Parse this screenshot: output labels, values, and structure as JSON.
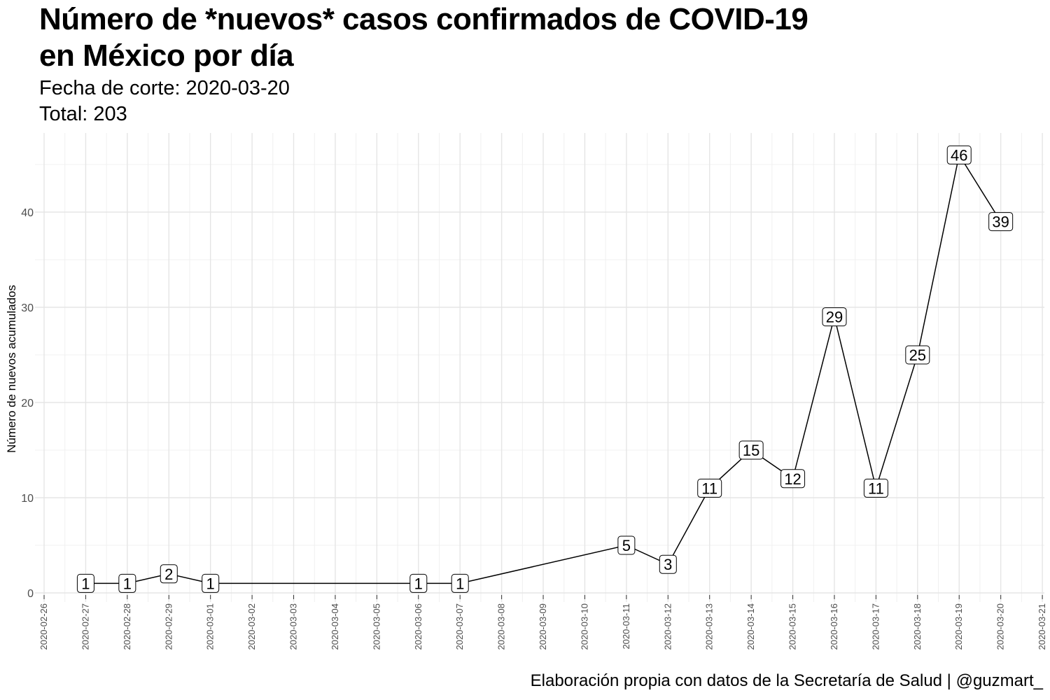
{
  "chart_data": {
    "type": "line",
    "title_line1": "Número de *nuevos* casos confirmados de COVID-19",
    "title_line2": "en México por día",
    "subtitle_line1": "Fecha de corte: 2020-03-20",
    "subtitle_line2": "Total: 203",
    "caption": "Elaboración propia con datos de la Secretaría de Salud | @guzmart_",
    "xlabel": "",
    "ylabel": "Número de nuevos acumulados",
    "x_ticks": [
      "2020-02-26",
      "2020-02-27",
      "2020-02-28",
      "2020-02-29",
      "2020-03-01",
      "2020-03-02",
      "2020-03-03",
      "2020-03-04",
      "2020-03-05",
      "2020-03-06",
      "2020-03-07",
      "2020-03-08",
      "2020-03-09",
      "2020-03-10",
      "2020-03-11",
      "2020-03-12",
      "2020-03-13",
      "2020-03-14",
      "2020-03-15",
      "2020-03-16",
      "2020-03-17",
      "2020-03-18",
      "2020-03-19",
      "2020-03-20",
      "2020-03-21"
    ],
    "y_ticks": [
      0,
      10,
      20,
      30,
      40
    ],
    "ylim": [
      -1,
      48
    ],
    "grid": true,
    "series": [
      {
        "x": [
          "2020-02-27",
          "2020-02-28",
          "2020-02-29",
          "2020-03-01",
          "2020-03-06",
          "2020-03-07",
          "2020-03-11",
          "2020-03-12",
          "2020-03-13",
          "2020-03-14",
          "2020-03-15",
          "2020-03-16",
          "2020-03-17",
          "2020-03-18",
          "2020-03-19",
          "2020-03-20"
        ],
        "values": [
          1,
          1,
          2,
          1,
          1,
          1,
          5,
          3,
          11,
          15,
          12,
          29,
          11,
          25,
          46,
          39
        ]
      }
    ]
  }
}
